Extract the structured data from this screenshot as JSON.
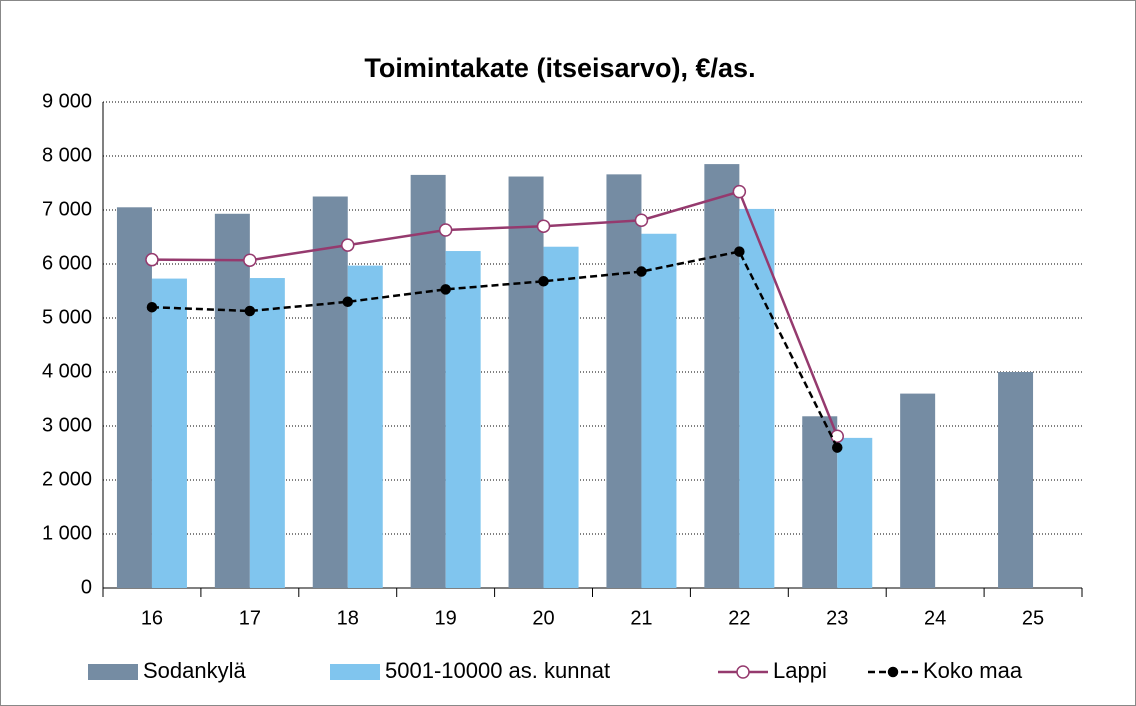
{
  "chart_data": {
    "type": "bar",
    "title": "Toimintakate (itseisarvo), €/as.",
    "categories": [
      "16",
      "17",
      "18",
      "19",
      "20",
      "21",
      "22",
      "23",
      "24",
      "25"
    ],
    "series": [
      {
        "name": "Sodankylä",
        "type": "bar",
        "color": "#758ca3",
        "values": [
          7050,
          6930,
          7250,
          7650,
          7620,
          7660,
          7850,
          3180,
          3600,
          4000
        ]
      },
      {
        "name": "5001-10000 as. kunnat",
        "type": "bar",
        "color": "#80c5ee",
        "values": [
          5730,
          5740,
          5970,
          6240,
          6320,
          6560,
          7020,
          2780,
          null,
          null
        ]
      },
      {
        "name": "Lappi",
        "type": "line",
        "color": "#953a6e",
        "marker": "open-circle",
        "values": [
          6080,
          6070,
          6350,
          6630,
          6700,
          6810,
          7340,
          2810,
          null,
          null
        ]
      },
      {
        "name": "Koko maa",
        "type": "line",
        "color": "#000000",
        "dashed": true,
        "marker": "filled-circle",
        "values": [
          5200,
          5130,
          5300,
          5530,
          5680,
          5860,
          6230,
          2600,
          null,
          null
        ]
      }
    ],
    "ylim": [
      0,
      9000
    ],
    "yticks": [
      0,
      {
        "value": 1000,
        "label": "1 000"
      },
      {
        "value": 2000,
        "label": "2 000"
      },
      {
        "value": 3000,
        "label": "3 000"
      },
      {
        "value": 4000,
        "label": "4 000"
      },
      {
        "value": 5000,
        "label": "5 000"
      },
      {
        "value": 6000,
        "label": "6 000"
      },
      {
        "value": 7000,
        "label": "7 000"
      },
      {
        "value": 8000,
        "label": "8 000"
      },
      {
        "value": 9000,
        "label": "9 000"
      }
    ],
    "grid": true,
    "legend": "bottom"
  }
}
